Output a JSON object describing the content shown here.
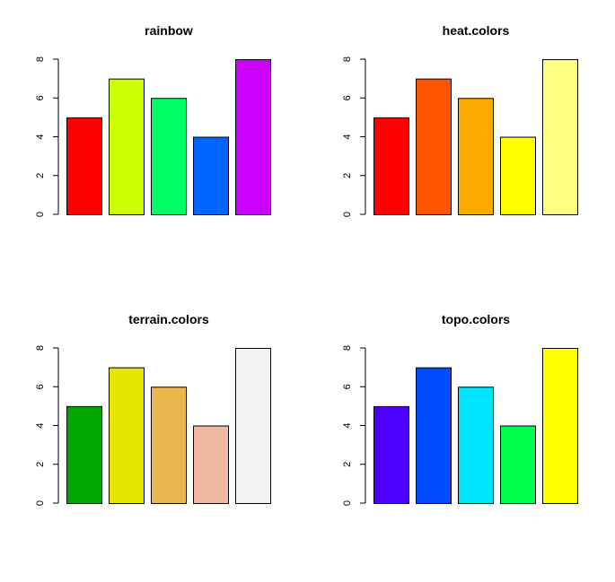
{
  "chart_data": [
    {
      "type": "bar",
      "title": "rainbow",
      "xlabel": "",
      "ylabel": "",
      "ylim": [
        0,
        8
      ],
      "yticks": [
        0,
        2,
        4,
        6,
        8
      ],
      "categories": [
        "",
        "",
        "",
        "",
        ""
      ],
      "values": [
        5,
        7,
        6,
        4,
        8
      ],
      "colors": [
        "#FF0000",
        "#CCFF00",
        "#00FF66",
        "#0066FF",
        "#CC00FF"
      ],
      "grid": false
    },
    {
      "type": "bar",
      "title": "heat.colors",
      "xlabel": "",
      "ylabel": "",
      "ylim": [
        0,
        8
      ],
      "yticks": [
        0,
        2,
        4,
        6,
        8
      ],
      "categories": [
        "",
        "",
        "",
        "",
        ""
      ],
      "values": [
        5,
        7,
        6,
        4,
        8
      ],
      "colors": [
        "#FF0000",
        "#FF5500",
        "#FFAA00",
        "#FFFF00",
        "#FFFF80"
      ],
      "grid": false
    },
    {
      "type": "bar",
      "title": "terrain.colors",
      "xlabel": "",
      "ylabel": "",
      "ylim": [
        0,
        8
      ],
      "yticks": [
        0,
        2,
        4,
        6,
        8
      ],
      "categories": [
        "",
        "",
        "",
        "",
        ""
      ],
      "values": [
        5,
        7,
        6,
        4,
        8
      ],
      "colors": [
        "#00A600",
        "#E6E600",
        "#EAB64E",
        "#EEB99F",
        "#F2F2F2"
      ],
      "grid": false
    },
    {
      "type": "bar",
      "title": "topo.colors",
      "xlabel": "",
      "ylabel": "",
      "ylim": [
        0,
        8
      ],
      "yticks": [
        0,
        2,
        4,
        6,
        8
      ],
      "categories": [
        "",
        "",
        "",
        "",
        ""
      ],
      "values": [
        5,
        7,
        6,
        4,
        8
      ],
      "colors": [
        "#4C00FF",
        "#004CFF",
        "#00E5FF",
        "#00FF4D",
        "#FFFF00"
      ],
      "grid": false
    }
  ]
}
